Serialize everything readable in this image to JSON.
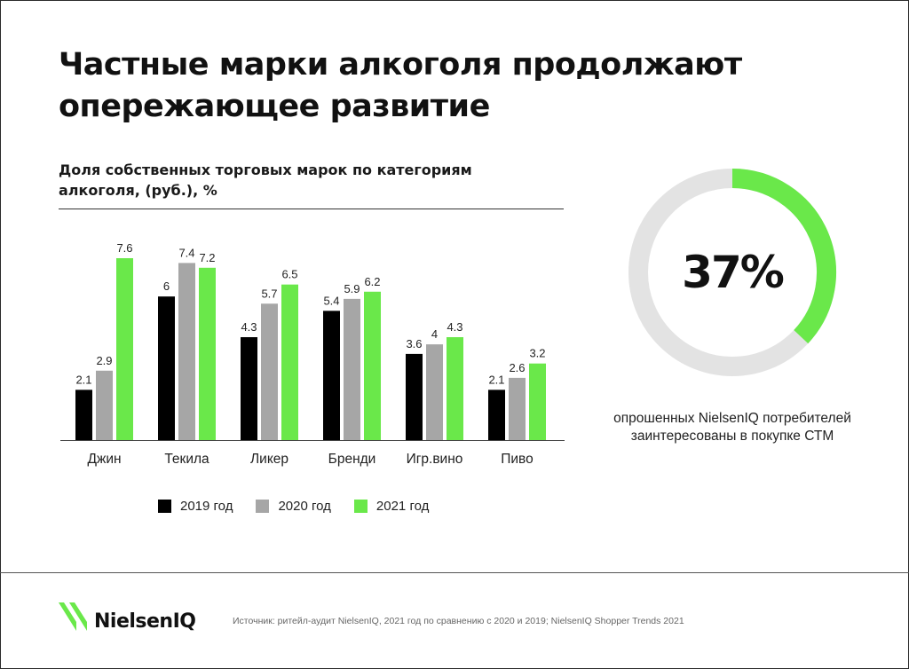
{
  "header": {
    "title": "Частные марки алкоголя продолжают опережающее развитие"
  },
  "chart_data": {
    "type": "bar",
    "title": "Доля собственных торговых марок по категориям алкоголя, (руб.), %",
    "categories": [
      "Джин",
      "Текила",
      "Ликер",
      "Бренди",
      "Игр.вино",
      "Пиво"
    ],
    "series": [
      {
        "name": "2019 год",
        "color": "#000000",
        "values": [
          2.1,
          6,
          4.3,
          5.4,
          3.6,
          2.1
        ],
        "labels": [
          "2.1",
          "6",
          "4.3",
          "5.4",
          "3.6",
          "2.1"
        ]
      },
      {
        "name": "2020 год",
        "color": "#a6a6a6",
        "values": [
          2.9,
          7.4,
          5.7,
          5.9,
          4,
          2.6
        ],
        "labels": [
          "2.9",
          "7.4",
          "5.7",
          "5.9",
          "4",
          "2.6"
        ]
      },
      {
        "name": "2021 год",
        "color": "#6ae84a",
        "values": [
          7.6,
          7.2,
          6.5,
          6.2,
          4.3,
          3.2
        ],
        "labels": [
          "7.6",
          "7.2",
          "6.5",
          "6.2",
          "4.3",
          "3.2"
        ]
      }
    ],
    "ylim": [
      0,
      7.6
    ],
    "grid": false,
    "legend": "bottom"
  },
  "stat": {
    "value_label": "37%",
    "fraction": 0.37,
    "caption": "опрошенных NielsenIQ потребителей заинтересованы в покупке СТМ",
    "ring_color": "#6ae84a",
    "track_color": "#e3e3e3"
  },
  "footer": {
    "logo_text": "NielsenIQ",
    "logo_color": "#6ae84a",
    "source": "Источник: ритейл-аудит NielsenIQ, 2021 год по сравнению с 2020 и 2019; NielsenIQ Shopper Trends 2021"
  }
}
